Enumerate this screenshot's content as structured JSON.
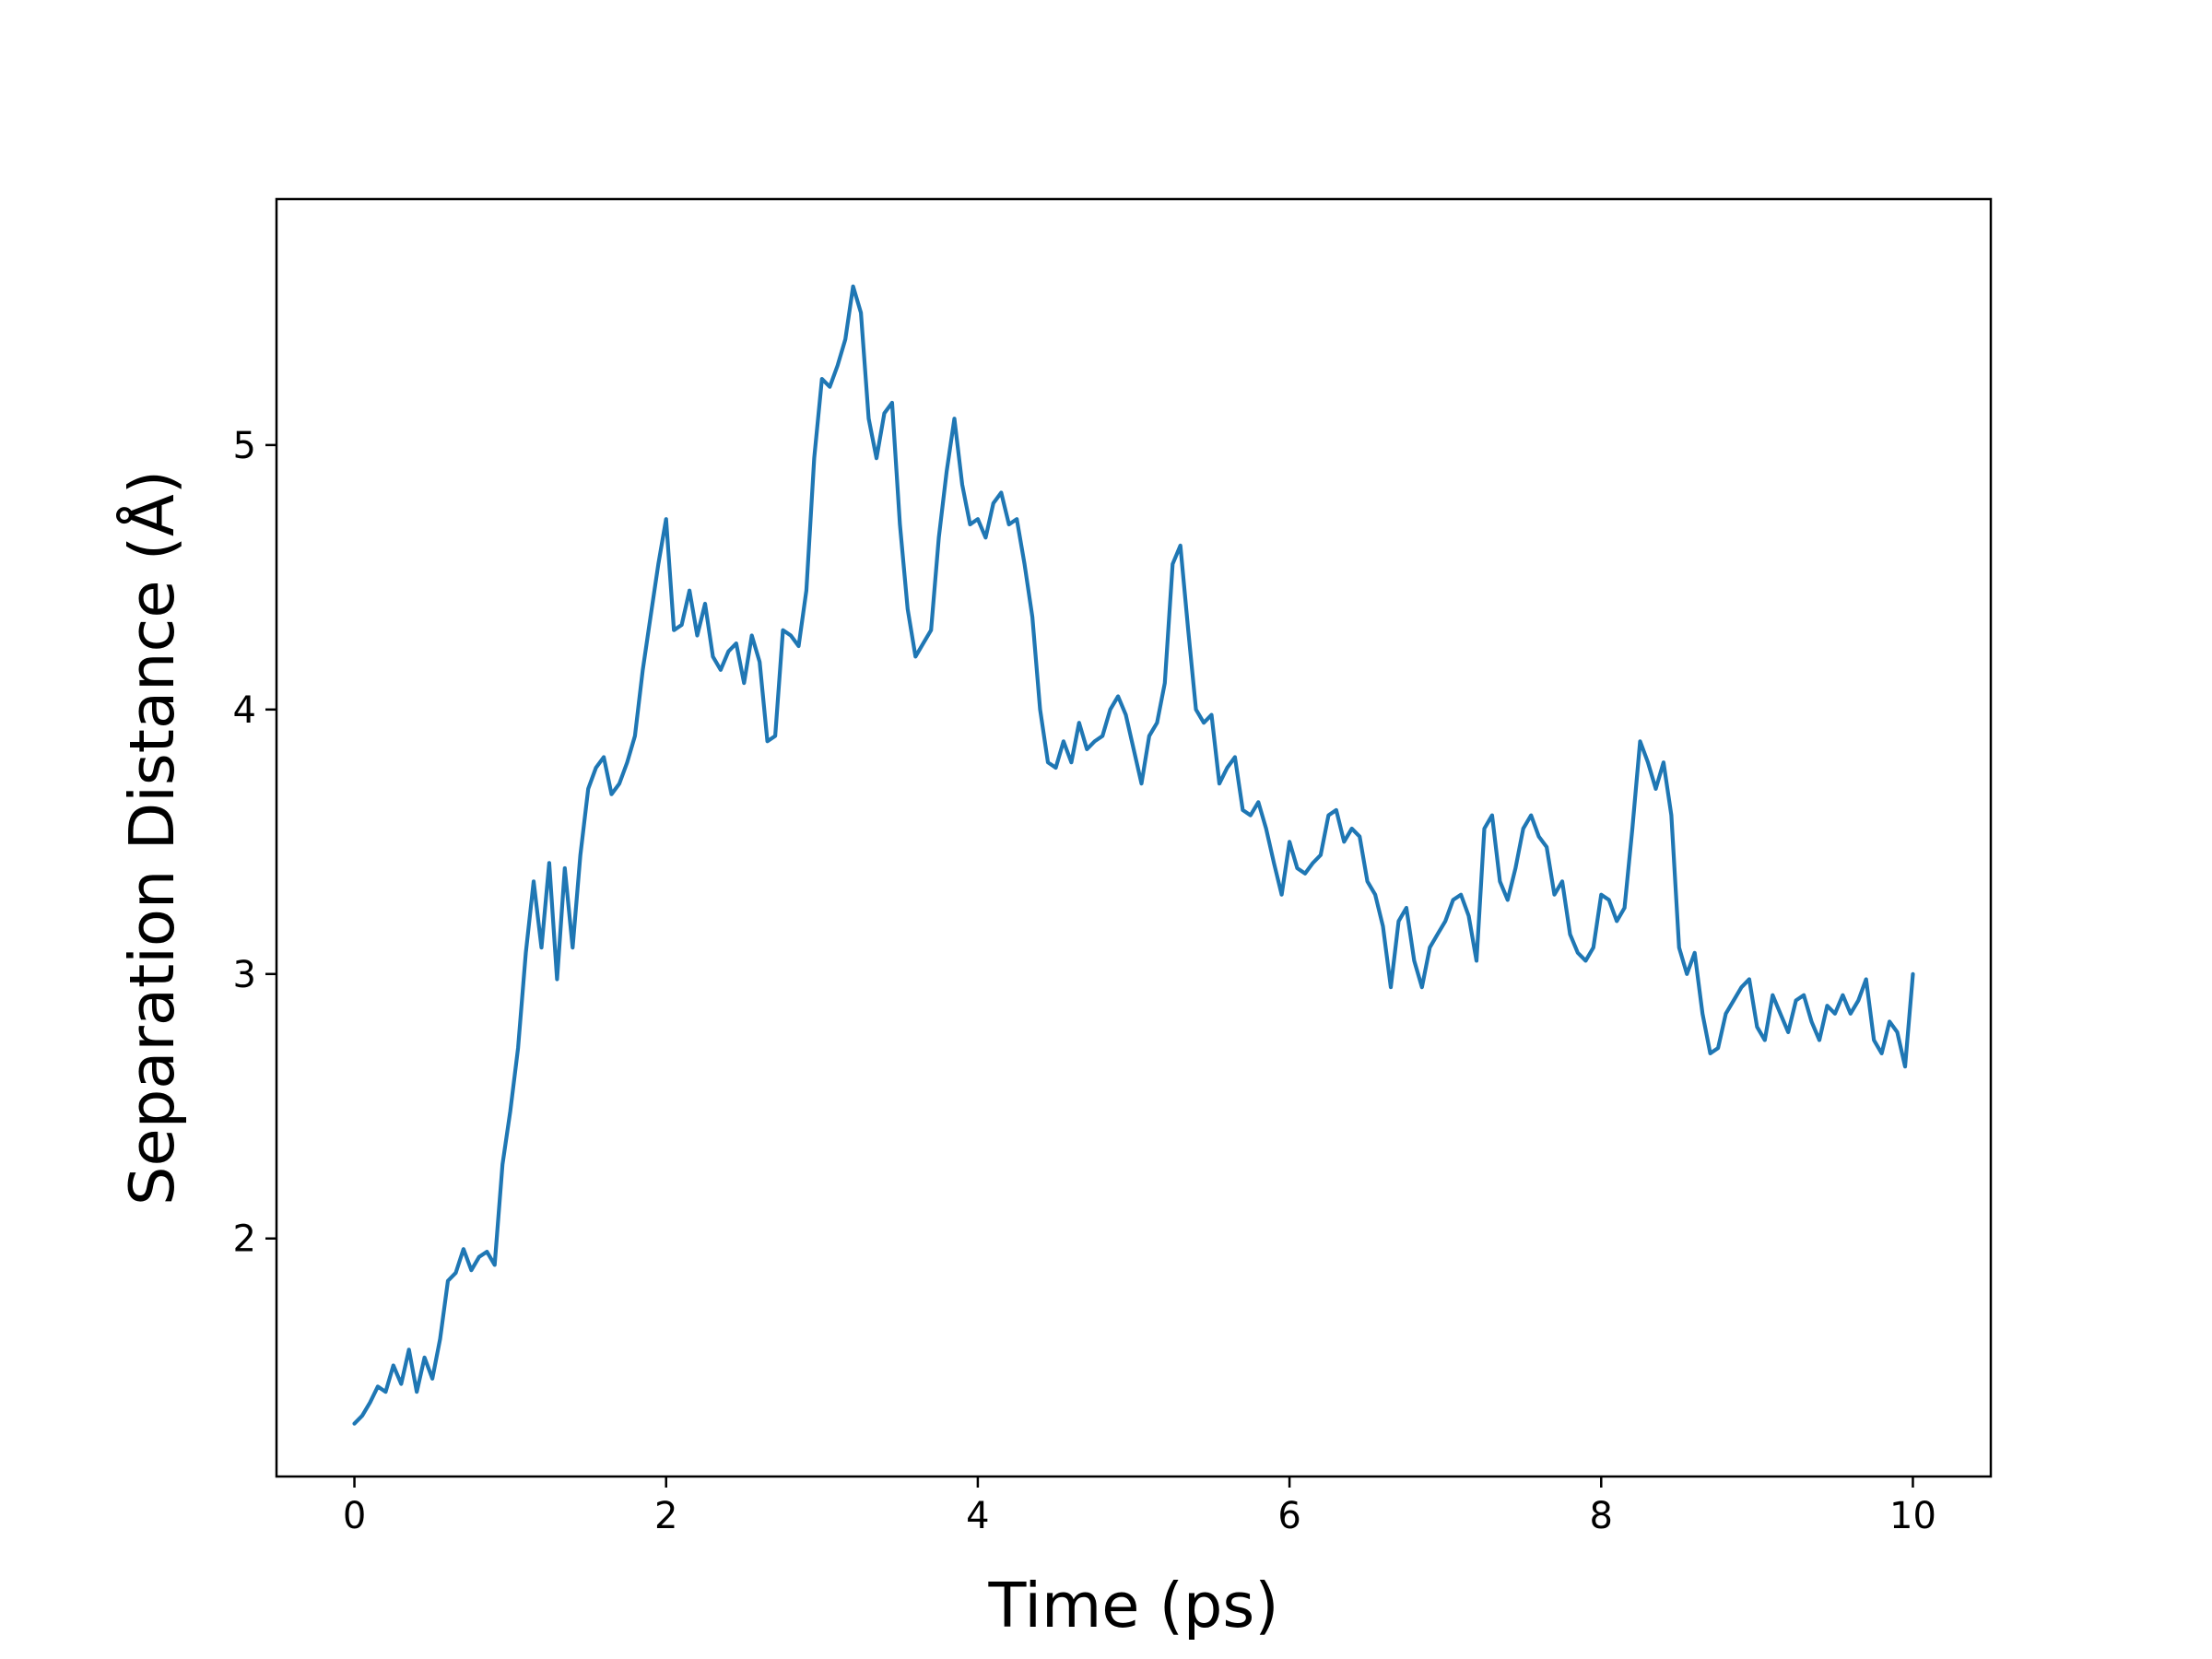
{
  "chart_data": {
    "type": "line",
    "title": "",
    "xlabel": "Time (ps)",
    "ylabel": "Separation Distance (Å)",
    "xlim": [
      -0.5,
      10.5
    ],
    "ylim": [
      1.1,
      5.93
    ],
    "xticks": [
      0,
      2,
      4,
      6,
      8,
      10
    ],
    "xtick_labels": [
      "0",
      "2",
      "4",
      "6",
      "8",
      "10"
    ],
    "yticks": [
      2,
      3,
      4,
      5
    ],
    "ytick_labels": [
      "2",
      "3",
      "4",
      "5"
    ],
    "grid": false,
    "legend": "none",
    "series": [
      {
        "color": "#1f77b4",
        "x": [
          0.0,
          0.05,
          0.1,
          0.15,
          0.2,
          0.25,
          0.3,
          0.35,
          0.4,
          0.45,
          0.5,
          0.55,
          0.6,
          0.65,
          0.7,
          0.75,
          0.8,
          0.85,
          0.9,
          0.95,
          1.0,
          1.05,
          1.1,
          1.15,
          1.2,
          1.25,
          1.3,
          1.35,
          1.4,
          1.45,
          1.5,
          1.55,
          1.6,
          1.65,
          1.7,
          1.75,
          1.8,
          1.85,
          1.9,
          1.95,
          2.0,
          2.05,
          2.1,
          2.15,
          2.2,
          2.25,
          2.3,
          2.35,
          2.4,
          2.45,
          2.5,
          2.55,
          2.6,
          2.65,
          2.7,
          2.75,
          2.8,
          2.85,
          2.9,
          2.95,
          3.0,
          3.05,
          3.1,
          3.15,
          3.2,
          3.25,
          3.3,
          3.35,
          3.4,
          3.45,
          3.5,
          3.55,
          3.6,
          3.65,
          3.7,
          3.75,
          3.8,
          3.85,
          3.9,
          3.95,
          4.0,
          4.05,
          4.1,
          4.15,
          4.2,
          4.25,
          4.3,
          4.35,
          4.4,
          4.45,
          4.5,
          4.55,
          4.6,
          4.65,
          4.7,
          4.75,
          4.8,
          4.85,
          4.9,
          4.95,
          5.0,
          5.05,
          5.1,
          5.15,
          5.2,
          5.25,
          5.3,
          5.35,
          5.4,
          5.45,
          5.5,
          5.55,
          5.6,
          5.65,
          5.7,
          5.75,
          5.8,
          5.85,
          5.9,
          5.95,
          6.0,
          6.05,
          6.1,
          6.15,
          6.2,
          6.25,
          6.3,
          6.35,
          6.4,
          6.45,
          6.5,
          6.55,
          6.6,
          6.65,
          6.7,
          6.75,
          6.8,
          6.85,
          6.9,
          6.95,
          7.0,
          7.05,
          7.1,
          7.15,
          7.2,
          7.25,
          7.3,
          7.35,
          7.4,
          7.45,
          7.5,
          7.55,
          7.6,
          7.65,
          7.7,
          7.75,
          7.8,
          7.85,
          7.9,
          7.95,
          8.0,
          8.05,
          8.1,
          8.15,
          8.2,
          8.25,
          8.3,
          8.35,
          8.4,
          8.45,
          8.5,
          8.55,
          8.6,
          8.65,
          8.7,
          8.75,
          8.8,
          8.85,
          8.9,
          8.95,
          9.0,
          9.05,
          9.1,
          9.15,
          9.2,
          9.25,
          9.3,
          9.35,
          9.4,
          9.45,
          9.5,
          9.55,
          9.6,
          9.65,
          9.7,
          9.75,
          9.8,
          9.85,
          9.9,
          9.95,
          10.0
        ],
        "y": [
          1.3,
          1.33,
          1.38,
          1.44,
          1.42,
          1.52,
          1.45,
          1.58,
          1.42,
          1.55,
          1.47,
          1.62,
          1.84,
          1.87,
          1.96,
          1.88,
          1.93,
          1.95,
          1.9,
          2.28,
          2.48,
          2.72,
          3.08,
          3.35,
          3.1,
          3.42,
          2.98,
          3.4,
          3.1,
          3.45,
          3.7,
          3.78,
          3.82,
          3.68,
          3.72,
          3.8,
          3.9,
          4.15,
          4.35,
          4.55,
          4.72,
          4.3,
          4.32,
          4.45,
          4.28,
          4.4,
          4.2,
          4.15,
          4.22,
          4.25,
          4.1,
          4.28,
          4.18,
          3.88,
          3.9,
          4.3,
          4.28,
          4.24,
          4.45,
          4.95,
          5.25,
          5.22,
          5.3,
          5.4,
          5.6,
          5.5,
          5.1,
          4.95,
          5.12,
          5.16,
          4.7,
          4.38,
          4.2,
          4.25,
          4.3,
          4.65,
          4.9,
          5.1,
          4.85,
          4.7,
          4.72,
          4.65,
          4.78,
          4.82,
          4.7,
          4.72,
          4.55,
          4.35,
          4.0,
          3.8,
          3.78,
          3.88,
          3.8,
          3.95,
          3.85,
          3.88,
          3.9,
          4.0,
          4.05,
          3.98,
          3.85,
          3.72,
          3.9,
          3.95,
          4.1,
          4.55,
          4.62,
          4.3,
          4.0,
          3.95,
          3.98,
          3.72,
          3.78,
          3.82,
          3.62,
          3.6,
          3.65,
          3.55,
          3.42,
          3.3,
          3.5,
          3.4,
          3.38,
          3.42,
          3.45,
          3.6,
          3.62,
          3.5,
          3.55,
          3.52,
          3.35,
          3.3,
          3.18,
          2.95,
          3.2,
          3.25,
          3.05,
          2.95,
          3.1,
          3.15,
          3.2,
          3.28,
          3.3,
          3.22,
          3.05,
          3.55,
          3.6,
          3.35,
          3.28,
          3.4,
          3.55,
          3.6,
          3.52,
          3.48,
          3.3,
          3.35,
          3.15,
          3.08,
          3.05,
          3.1,
          3.3,
          3.28,
          3.2,
          3.25,
          3.55,
          3.88,
          3.8,
          3.7,
          3.8,
          3.6,
          3.1,
          3.0,
          3.08,
          2.85,
          2.7,
          2.72,
          2.85,
          2.9,
          2.95,
          2.98,
          2.8,
          2.75,
          2.92,
          2.85,
          2.78,
          2.9,
          2.92,
          2.82,
          2.75,
          2.88,
          2.85,
          2.92,
          2.85,
          2.9,
          2.98,
          2.75,
          2.7,
          2.82,
          2.78,
          2.65,
          3.0
        ]
      }
    ]
  }
}
